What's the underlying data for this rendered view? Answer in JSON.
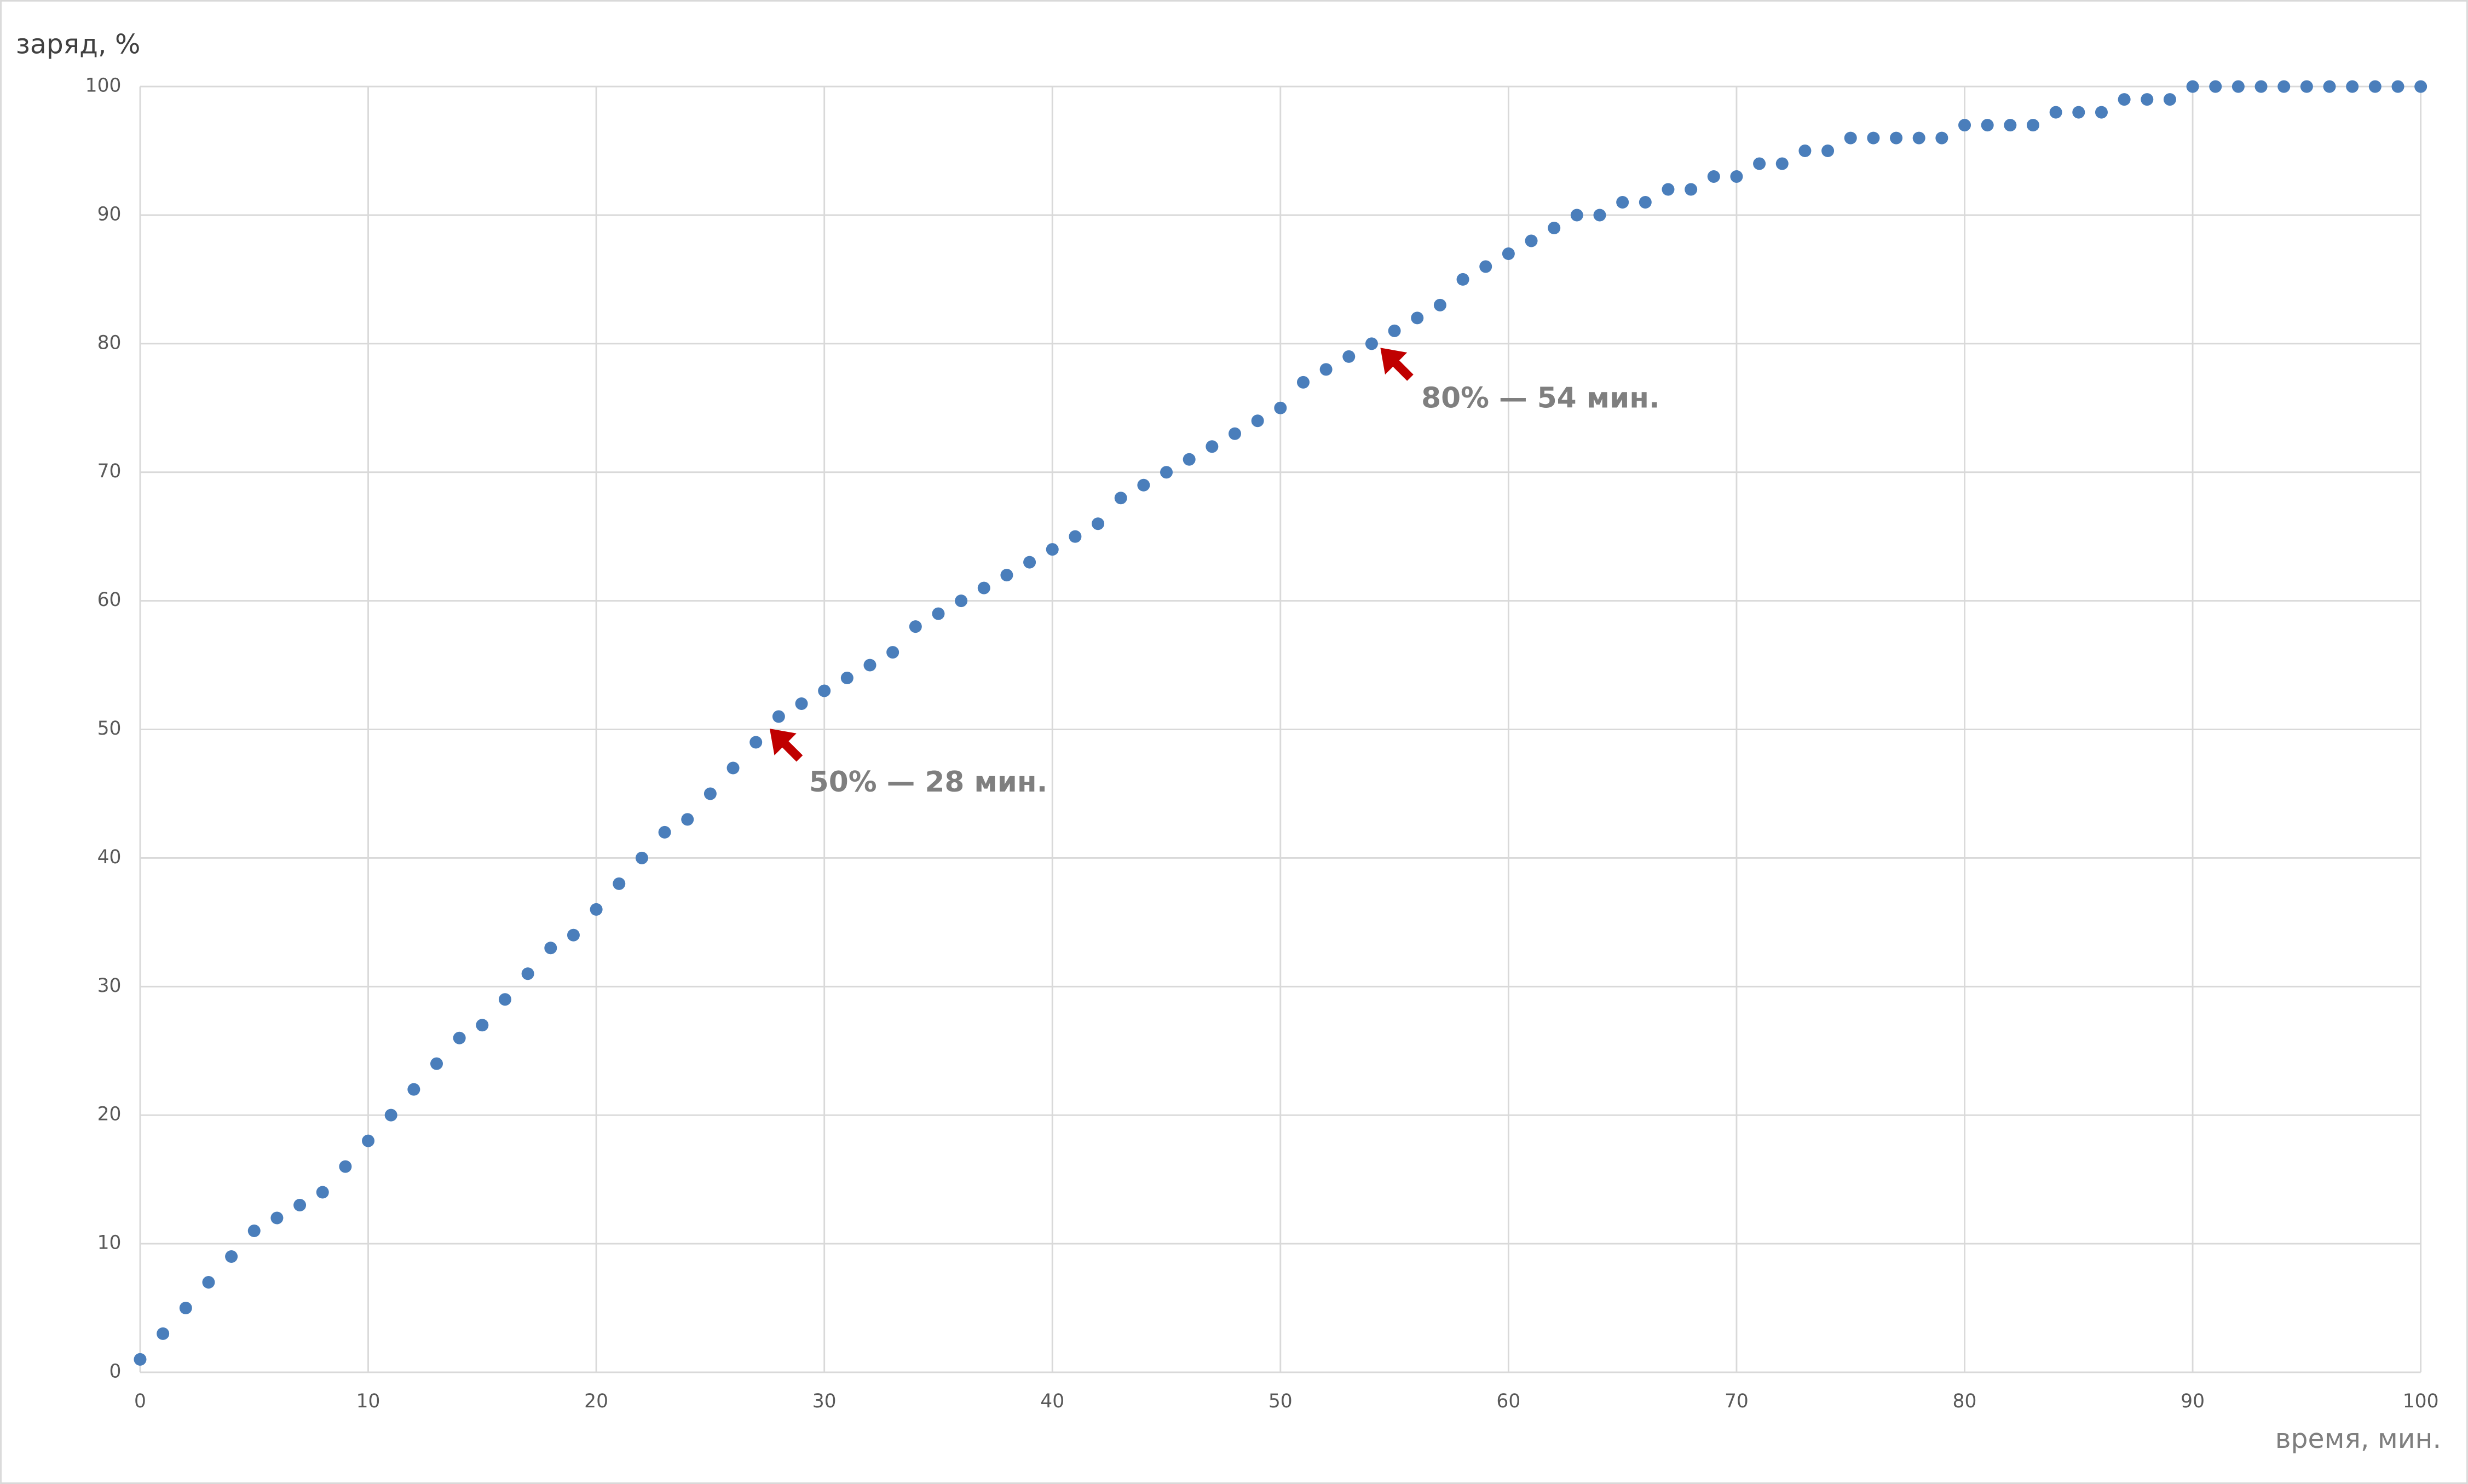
{
  "chart_data": {
    "type": "scatter",
    "x_label": "время, мин.",
    "y_label": "заряд, %",
    "annotations": [
      "50% — 28 мин.",
      "80% — 54 мин."
    ],
    "color": "#4a7ebb",
    "grid": true,
    "xlim": [
      0,
      100
    ],
    "ylim": [
      0,
      100
    ],
    "xticks": [
      0,
      10,
      20,
      30,
      40,
      50,
      60,
      70,
      80,
      90,
      100
    ],
    "yticks": [
      0,
      10,
      20,
      30,
      40,
      50,
      60,
      70,
      80,
      90,
      100
    ],
    "x": [
      0,
      1,
      2,
      3,
      4,
      5,
      6,
      7,
      8,
      9,
      10,
      11,
      12,
      13,
      14,
      15,
      16,
      17,
      18,
      19,
      20,
      21,
      22,
      23,
      24,
      25,
      26,
      27,
      28,
      29,
      30,
      31,
      32,
      33,
      34,
      35,
      36,
      37,
      38,
      39,
      40,
      41,
      42,
      43,
      44,
      45,
      46,
      47,
      48,
      49,
      50,
      51,
      52,
      53,
      54,
      55,
      56,
      57,
      58,
      59,
      60,
      61,
      62,
      63,
      64,
      65,
      66,
      67,
      68,
      69,
      70,
      71,
      72,
      73,
      74,
      75,
      76,
      77,
      78,
      79,
      80,
      81,
      82,
      83,
      84,
      85,
      86,
      87,
      88,
      89,
      90,
      91,
      92,
      93,
      94,
      95,
      96,
      97,
      98,
      99,
      100
    ],
    "values": [
      1,
      3,
      5,
      7,
      9,
      11,
      12,
      13,
      14,
      16,
      18,
      20,
      22,
      24,
      26,
      27,
      29,
      31,
      33,
      34,
      36,
      38,
      40,
      42,
      43,
      45,
      47,
      49,
      51,
      52,
      53,
      54,
      55,
      56,
      58,
      59,
      60,
      61,
      62,
      63,
      64,
      65,
      66,
      68,
      69,
      70,
      71,
      72,
      73,
      74,
      75,
      77,
      78,
      79,
      80,
      81,
      82,
      83,
      85,
      86,
      87,
      88,
      89,
      90,
      90,
      91,
      91,
      92,
      92,
      93,
      93,
      94,
      94,
      95,
      95,
      96,
      96,
      96,
      96,
      96,
      97,
      97,
      97,
      97,
      98,
      98,
      98,
      99,
      99,
      99,
      100,
      100,
      100,
      100,
      100,
      100,
      100,
      100,
      100,
      100,
      100
    ]
  }
}
